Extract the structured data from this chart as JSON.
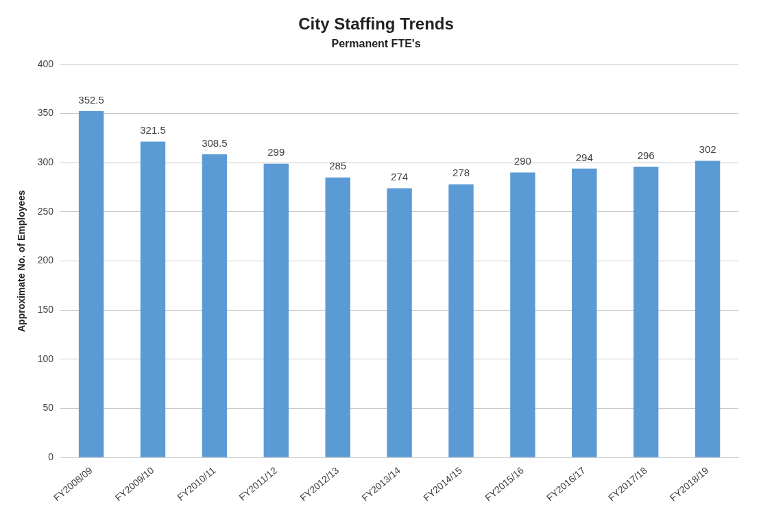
{
  "chart_data": {
    "type": "bar",
    "title": "City Staffing Trends",
    "subtitle": "Permanent FTE's",
    "ylabel": "Approximate No. of Employees",
    "categories": [
      "FY2008/09",
      "FY2009/10",
      "FY2010/11",
      "FY2011/12",
      "FY2012/13",
      "FY2013/14",
      "FY2014/15",
      "FY2015/16",
      "FY2016/17",
      "FY2017/18",
      "FY2018/19"
    ],
    "values": [
      352.5,
      321.5,
      308.5,
      299,
      285,
      274,
      278,
      290,
      294,
      296,
      302
    ],
    "color": "#5b9bd5",
    "ylim": [
      0,
      400
    ],
    "yticks": [
      0,
      50,
      100,
      150,
      200,
      250,
      300,
      350,
      400
    ],
    "grid": "y",
    "legend": false,
    "data_labels": true
  }
}
